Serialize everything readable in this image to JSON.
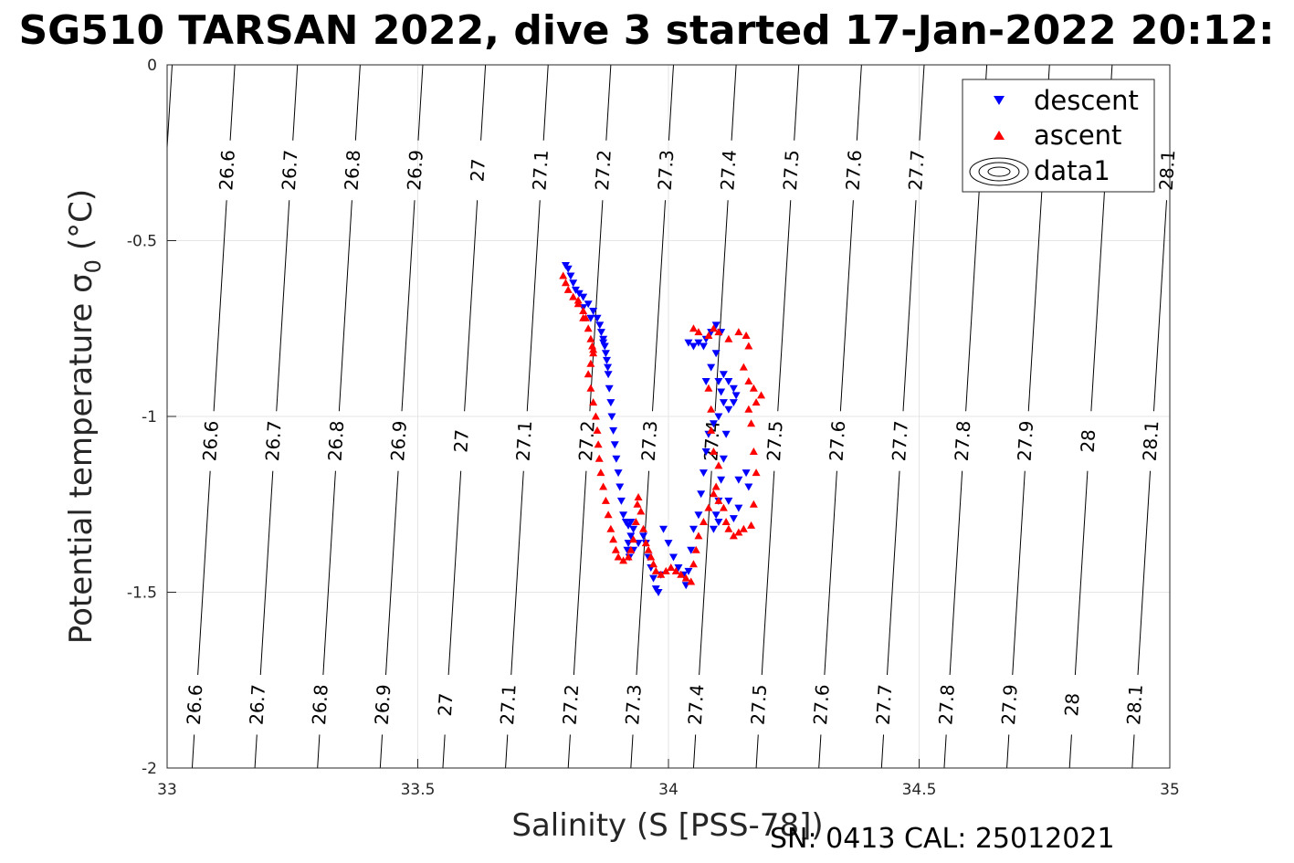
{
  "chart_data": {
    "type": "scatter",
    "title": "SG510 TARSAN 2022, dive 3 started 17-Jan-2022 20:12:",
    "xlabel": "Salinity (S [PSS-78])",
    "ylabel": "Potential temperature σ",
    "ylabel_sub": "0",
    "ylabel_unit": "(°C)",
    "footer": "SN: 0413  CAL: 25012021",
    "xlim": [
      33,
      35
    ],
    "ylim": [
      -2,
      0
    ],
    "xticks": [
      "33",
      "33.5",
      "34",
      "34.5",
      "35"
    ],
    "yticks": [
      "0",
      "-0.5",
      "-1",
      "-1.5",
      "-2"
    ],
    "grid": true,
    "legend_position": "top-right",
    "legend": [
      "descent",
      "ascent",
      "data1"
    ],
    "colors": {
      "descent": "#0000ff",
      "ascent": "#ff0000",
      "contour": "#000000",
      "grid": "#e6e6e6"
    },
    "contour_levels": [
      "26.6",
      "26.7",
      "26.8",
      "26.9",
      "27",
      "27.1",
      "27.2",
      "27.3",
      "27.4",
      "27.5",
      "27.6",
      "27.7",
      "27.8",
      "27.9",
      "28",
      "28.1"
    ],
    "contour_lines": [
      {
        "level": "26.6",
        "s_top": 33.135,
        "s_bottom": 33.05,
        "labels": [
          {
            "t": -0.3,
            "text": "26.6"
          },
          {
            "t": -1.07,
            "text": "26.6"
          },
          {
            "t": -1.82,
            "text": "26.6"
          }
        ]
      },
      {
        "level": "26.7",
        "s_top": 33.26,
        "s_bottom": 33.175,
        "labels": [
          {
            "t": -0.3,
            "text": "26.7"
          },
          {
            "t": -1.07,
            "text": "26.7"
          },
          {
            "t": -1.82,
            "text": "26.7"
          }
        ]
      },
      {
        "level": "26.8",
        "s_top": 33.385,
        "s_bottom": 33.3,
        "labels": [
          {
            "t": -0.3,
            "text": "26.8"
          },
          {
            "t": -1.07,
            "text": "26.8"
          },
          {
            "t": -1.82,
            "text": "26.8"
          }
        ]
      },
      {
        "level": "26.9",
        "s_top": 33.51,
        "s_bottom": 33.425,
        "labels": [
          {
            "t": -0.3,
            "text": "26.9"
          },
          {
            "t": -1.07,
            "text": "26.9"
          },
          {
            "t": -1.82,
            "text": "26.9"
          }
        ]
      },
      {
        "level": "27",
        "s_top": 33.635,
        "s_bottom": 33.55,
        "labels": [
          {
            "t": -0.3,
            "text": "27"
          },
          {
            "t": -1.07,
            "text": "27"
          },
          {
            "t": -1.82,
            "text": "27"
          }
        ]
      },
      {
        "level": "27.1",
        "s_top": 33.76,
        "s_bottom": 33.675,
        "labels": [
          {
            "t": -0.3,
            "text": "27.1"
          },
          {
            "t": -1.07,
            "text": "27.1"
          },
          {
            "t": -1.82,
            "text": "27.1"
          }
        ]
      },
      {
        "level": "27.2",
        "s_top": 33.885,
        "s_bottom": 33.8,
        "labels": [
          {
            "t": -0.3,
            "text": "27.2"
          },
          {
            "t": -1.07,
            "text": "27.2"
          },
          {
            "t": -1.82,
            "text": "27.2"
          }
        ]
      },
      {
        "level": "27.3",
        "s_top": 34.01,
        "s_bottom": 33.925,
        "labels": [
          {
            "t": -0.3,
            "text": "27.3"
          },
          {
            "t": -1.07,
            "text": "27.3"
          },
          {
            "t": -1.82,
            "text": "27.3"
          }
        ]
      },
      {
        "level": "27.4",
        "s_top": 34.135,
        "s_bottom": 34.05,
        "labels": [
          {
            "t": -0.3,
            "text": "27.4"
          },
          {
            "t": -1.07,
            "text": "27.4"
          },
          {
            "t": -1.82,
            "text": "27.4"
          }
        ]
      },
      {
        "level": "27.5",
        "s_top": 34.26,
        "s_bottom": 34.175,
        "labels": [
          {
            "t": -0.3,
            "text": "27.5"
          },
          {
            "t": -1.07,
            "text": "27.5"
          },
          {
            "t": -1.82,
            "text": "27.5"
          }
        ]
      },
      {
        "level": "27.6",
        "s_top": 34.385,
        "s_bottom": 34.3,
        "labels": [
          {
            "t": -0.3,
            "text": "27.6"
          },
          {
            "t": -1.07,
            "text": "27.6"
          },
          {
            "t": -1.82,
            "text": "27.6"
          }
        ]
      },
      {
        "level": "27.7",
        "s_top": 34.51,
        "s_bottom": 34.425,
        "labels": [
          {
            "t": -0.3,
            "text": "27.7"
          },
          {
            "t": -1.07,
            "text": "27.7"
          },
          {
            "t": -1.82,
            "text": "27.7"
          }
        ]
      },
      {
        "level": "27.8",
        "s_top": 34.635,
        "s_bottom": 34.55,
        "labels": [
          {
            "t": -1.07,
            "text": "27.8"
          },
          {
            "t": -1.82,
            "text": "27.8"
          }
        ]
      },
      {
        "level": "27.9",
        "s_top": 34.76,
        "s_bottom": 34.675,
        "labels": [
          {
            "t": -1.07,
            "text": "27.9"
          },
          {
            "t": -1.82,
            "text": "27.9"
          }
        ]
      },
      {
        "level": "28",
        "s_top": 34.885,
        "s_bottom": 34.8,
        "labels": [
          {
            "t": -1.07,
            "text": "28"
          },
          {
            "t": -1.82,
            "text": "28"
          }
        ]
      },
      {
        "level": "28.1",
        "s_top": 35.01,
        "s_bottom": 34.925,
        "labels": [
          {
            "t": -0.3,
            "text": "28.1"
          },
          {
            "t": -1.07,
            "text": "28.1"
          },
          {
            "t": -1.82,
            "text": "28.1"
          }
        ]
      },
      {
        "level": "",
        "s_top": 33.01,
        "s_bottom": 32.925,
        "labels": []
      }
    ],
    "series": [
      {
        "name": "descent",
        "marker": "triangle-down",
        "color": "#0000ff",
        "points": [
          [
            33.795,
            -0.57
          ],
          [
            33.8,
            -0.58
          ],
          [
            33.805,
            -0.6
          ],
          [
            33.81,
            -0.62
          ],
          [
            33.815,
            -0.64
          ],
          [
            33.822,
            -0.65
          ],
          [
            33.83,
            -0.66
          ],
          [
            33.84,
            -0.68
          ],
          [
            33.85,
            -0.7
          ],
          [
            33.858,
            -0.72
          ],
          [
            33.863,
            -0.74
          ],
          [
            33.866,
            -0.76
          ],
          [
            33.87,
            -0.78
          ],
          [
            33.873,
            -0.8
          ],
          [
            33.875,
            -0.82
          ],
          [
            33.877,
            -0.84
          ],
          [
            33.879,
            -0.86
          ],
          [
            33.88,
            -0.88
          ],
          [
            33.882,
            -0.92
          ],
          [
            33.885,
            -0.96
          ],
          [
            33.887,
            -1.0
          ],
          [
            33.89,
            -1.04
          ],
          [
            33.893,
            -1.08
          ],
          [
            33.896,
            -1.12
          ],
          [
            33.9,
            -1.16
          ],
          [
            33.903,
            -1.2
          ],
          [
            33.906,
            -1.24
          ],
          [
            33.91,
            -1.28
          ],
          [
            33.915,
            -1.3
          ],
          [
            33.92,
            -1.31
          ],
          [
            33.925,
            -1.3
          ],
          [
            33.93,
            -1.32
          ],
          [
            33.925,
            -1.34
          ],
          [
            33.92,
            -1.36
          ],
          [
            33.918,
            -1.38
          ],
          [
            33.922,
            -1.4
          ],
          [
            33.93,
            -1.38
          ],
          [
            33.94,
            -1.36
          ],
          [
            33.95,
            -1.34
          ],
          [
            33.955,
            -1.36
          ],
          [
            33.96,
            -1.4
          ],
          [
            33.965,
            -1.43
          ],
          [
            33.97,
            -1.46
          ],
          [
            33.975,
            -1.49
          ],
          [
            33.98,
            -1.5
          ],
          [
            33.985,
            -1.45
          ],
          [
            33.99,
            -1.32
          ],
          [
            34.0,
            -1.36
          ],
          [
            34.01,
            -1.4
          ],
          [
            34.02,
            -1.43
          ],
          [
            34.03,
            -1.45
          ],
          [
            34.035,
            -1.48
          ],
          [
            34.04,
            -1.44
          ],
          [
            34.045,
            -1.38
          ],
          [
            34.05,
            -1.32
          ],
          [
            34.06,
            -1.28
          ],
          [
            34.065,
            -1.22
          ],
          [
            34.07,
            -1.16
          ],
          [
            34.075,
            -1.1
          ],
          [
            34.08,
            -1.05
          ],
          [
            34.09,
            -1.02
          ],
          [
            34.1,
            -1.0
          ],
          [
            34.11,
            -0.96
          ],
          [
            34.105,
            -0.93
          ],
          [
            34.1,
            -0.9
          ],
          [
            34.11,
            -0.88
          ],
          [
            34.12,
            -0.9
          ],
          [
            34.13,
            -0.92
          ],
          [
            34.135,
            -0.94
          ],
          [
            34.13,
            -0.96
          ],
          [
            34.12,
            -0.98
          ],
          [
            34.115,
            -1.05
          ],
          [
            34.11,
            -1.12
          ],
          [
            34.105,
            -1.18
          ],
          [
            34.1,
            -1.24
          ],
          [
            34.095,
            -1.28
          ],
          [
            34.09,
            -1.32
          ],
          [
            34.1,
            -1.3
          ],
          [
            34.12,
            -1.24
          ],
          [
            34.14,
            -1.18
          ],
          [
            34.155,
            -1.16
          ],
          [
            34.16,
            -1.2
          ],
          [
            34.14,
            -1.26
          ],
          [
            34.13,
            -1.29
          ],
          [
            34.07,
            -0.8
          ],
          [
            34.075,
            -0.78
          ],
          [
            34.085,
            -0.76
          ],
          [
            34.095,
            -0.74
          ],
          [
            34.105,
            -0.76
          ],
          [
            34.095,
            -0.82
          ],
          [
            34.085,
            -0.86
          ],
          [
            34.075,
            -0.9
          ],
          [
            34.04,
            -0.79
          ],
          [
            34.05,
            -0.8
          ],
          [
            34.06,
            -0.79
          ],
          [
            33.83,
            -0.69
          ],
          [
            33.845,
            -0.72
          ],
          [
            33.87,
            -0.79
          ]
        ]
      },
      {
        "name": "ascent",
        "marker": "triangle-up",
        "color": "#ff0000",
        "points": [
          [
            33.79,
            -0.6
          ],
          [
            33.795,
            -0.62
          ],
          [
            33.8,
            -0.64
          ],
          [
            33.81,
            -0.66
          ],
          [
            33.82,
            -0.68
          ],
          [
            33.83,
            -0.7
          ],
          [
            33.835,
            -0.72
          ],
          [
            33.84,
            -0.75
          ],
          [
            33.845,
            -0.78
          ],
          [
            33.848,
            -0.8
          ],
          [
            33.85,
            -0.82
          ],
          [
            33.845,
            -0.85
          ],
          [
            33.84,
            -0.88
          ],
          [
            33.845,
            -0.92
          ],
          [
            33.85,
            -0.96
          ],
          [
            33.855,
            -1.0
          ],
          [
            33.858,
            -1.04
          ],
          [
            33.86,
            -1.08
          ],
          [
            33.862,
            -1.12
          ],
          [
            33.865,
            -1.16
          ],
          [
            33.87,
            -1.2
          ],
          [
            33.875,
            -1.24
          ],
          [
            33.88,
            -1.28
          ],
          [
            33.885,
            -1.32
          ],
          [
            33.89,
            -1.35
          ],
          [
            33.895,
            -1.38
          ],
          [
            33.9,
            -1.4
          ],
          [
            33.91,
            -1.41
          ],
          [
            33.92,
            -1.4
          ],
          [
            33.925,
            -1.38
          ],
          [
            33.93,
            -1.35
          ],
          [
            33.935,
            -1.3
          ],
          [
            33.938,
            -1.25
          ],
          [
            33.94,
            -1.23
          ],
          [
            33.945,
            -1.27
          ],
          [
            33.95,
            -1.32
          ],
          [
            33.955,
            -1.36
          ],
          [
            33.96,
            -1.38
          ],
          [
            33.965,
            -1.4
          ],
          [
            33.97,
            -1.42
          ],
          [
            33.975,
            -1.44
          ],
          [
            33.985,
            -1.45
          ],
          [
            33.995,
            -1.44
          ],
          [
            34.005,
            -1.43
          ],
          [
            34.015,
            -1.44
          ],
          [
            34.025,
            -1.45
          ],
          [
            34.035,
            -1.46
          ],
          [
            34.045,
            -1.47
          ],
          [
            34.05,
            -1.42
          ],
          [
            34.055,
            -1.38
          ],
          [
            34.06,
            -1.34
          ],
          [
            34.07,
            -1.3
          ],
          [
            34.08,
            -1.26
          ],
          [
            34.09,
            -1.22
          ],
          [
            34.095,
            -1.2
          ],
          [
            34.1,
            -1.24
          ],
          [
            34.11,
            -1.26
          ],
          [
            34.115,
            -1.3
          ],
          [
            34.12,
            -1.32
          ],
          [
            34.13,
            -1.34
          ],
          [
            34.14,
            -1.33
          ],
          [
            34.15,
            -1.32
          ],
          [
            34.165,
            -1.31
          ],
          [
            34.17,
            -1.25
          ],
          [
            34.175,
            -1.16
          ],
          [
            34.17,
            -1.1
          ],
          [
            34.165,
            -1.02
          ],
          [
            34.16,
            -0.98
          ],
          [
            34.175,
            -0.96
          ],
          [
            34.185,
            -0.94
          ],
          [
            34.17,
            -0.92
          ],
          [
            34.16,
            -0.9
          ],
          [
            34.15,
            -0.86
          ],
          [
            34.16,
            -0.8
          ],
          [
            34.155,
            -0.77
          ],
          [
            34.14,
            -0.76
          ],
          [
            34.12,
            -0.78
          ],
          [
            34.1,
            -0.76
          ],
          [
            34.09,
            -0.75
          ],
          [
            34.08,
            -0.77
          ],
          [
            34.06,
            -0.76
          ],
          [
            34.05,
            -0.75
          ],
          [
            34.08,
            -0.92
          ],
          [
            34.085,
            -0.98
          ],
          [
            34.085,
            -1.04
          ],
          [
            34.09,
            -1.1
          ],
          [
            34.1,
            -1.14
          ],
          [
            33.82,
            -0.67
          ],
          [
            33.83,
            -0.72
          ],
          [
            33.85,
            -0.81
          ]
        ]
      }
    ]
  }
}
